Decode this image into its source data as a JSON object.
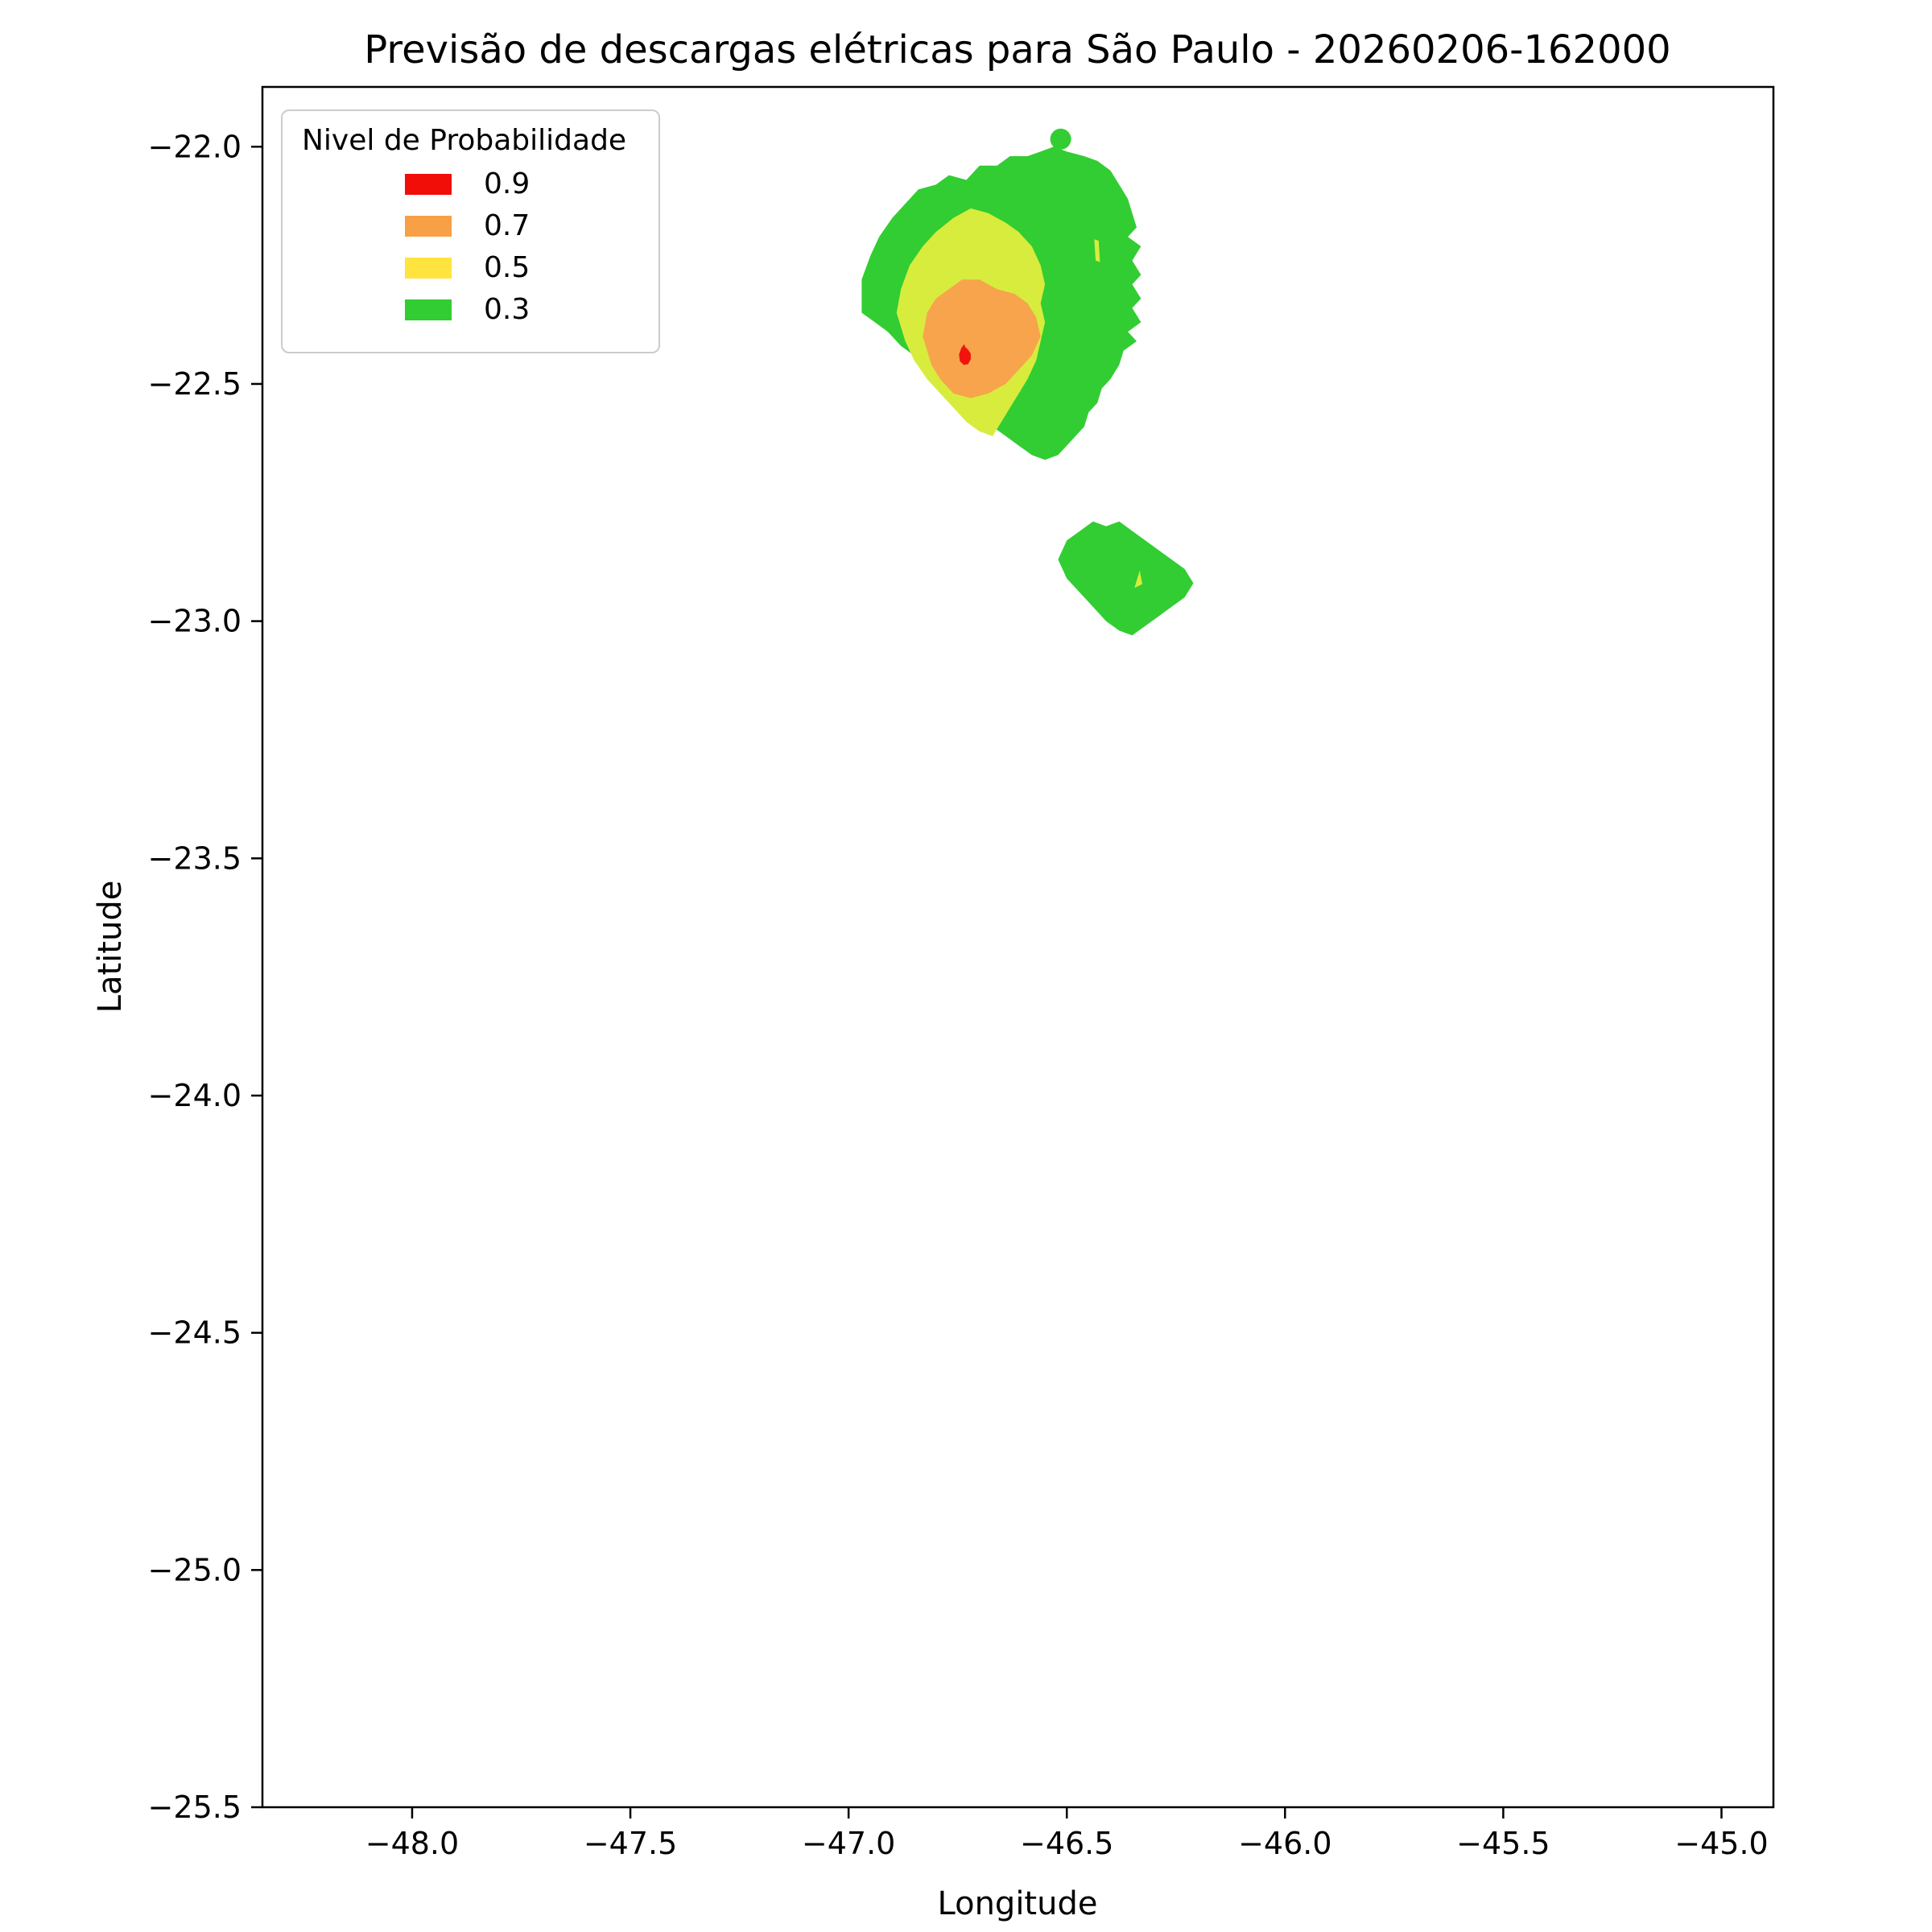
{
  "chart_data": {
    "type": "filled_contour_map",
    "title": "Previsão de descargas elétricas para São Paulo - 20260206-162000",
    "xlabel": "Longitude",
    "ylabel": "Latitude",
    "legend_title": "Nivel de Probabilidade",
    "x_range": [
      -48.343,
      -44.881
    ],
    "y_range": [
      -25.5,
      -21.874
    ],
    "grid": false,
    "legend_position": "upper left",
    "x_ticks": [
      {
        "value": -48.0,
        "label": "−48.0"
      },
      {
        "value": -47.5,
        "label": "−47.5"
      },
      {
        "value": -47.0,
        "label": "−47.0"
      },
      {
        "value": -46.5,
        "label": "−46.5"
      },
      {
        "value": -46.0,
        "label": "−46.0"
      },
      {
        "value": -45.5,
        "label": "−45.5"
      },
      {
        "value": -45.0,
        "label": "−45.0"
      }
    ],
    "y_ticks": [
      {
        "value": -22.0,
        "label": "−22.0"
      },
      {
        "value": -22.5,
        "label": "−22.5"
      },
      {
        "value": -23.0,
        "label": "−23.0"
      },
      {
        "value": -23.5,
        "label": "−23.5"
      },
      {
        "value": -24.0,
        "label": "−24.0"
      },
      {
        "value": -24.5,
        "label": "−24.5"
      },
      {
        "value": -25.0,
        "label": "−25.0"
      },
      {
        "value": -25.5,
        "label": "−25.5"
      }
    ],
    "levels": [
      {
        "label": "0.9",
        "color": "#f10e08"
      },
      {
        "label": "0.7",
        "color": "#f8a045"
      },
      {
        "label": "0.5",
        "color": "#ffe33e"
      },
      {
        "label": "0.3",
        "color": "#32cd32"
      }
    ],
    "regions": [
      {
        "name": "storm-cell-1-prob-30",
        "level": 0.3,
        "color": "#32cd32",
        "points": [
          [
            -46.97,
            -22.35
          ],
          [
            -46.97,
            -22.28
          ],
          [
            -46.95,
            -22.23
          ],
          [
            -46.93,
            -22.19
          ],
          [
            -46.9,
            -22.15
          ],
          [
            -46.87,
            -22.12
          ],
          [
            -46.84,
            -22.09
          ],
          [
            -46.8,
            -22.08
          ],
          [
            -46.77,
            -22.06
          ],
          [
            -46.73,
            -22.07
          ],
          [
            -46.7,
            -22.04
          ],
          [
            -46.66,
            -22.04
          ],
          [
            -46.63,
            -22.02
          ],
          [
            -46.59,
            -22.02
          ],
          [
            -46.56,
            -22.01
          ],
          [
            -46.53,
            -22.0
          ],
          [
            -46.5,
            -22.01
          ],
          [
            -46.46,
            -22.02
          ],
          [
            -46.43,
            -22.03
          ],
          [
            -46.4,
            -22.05
          ],
          [
            -46.38,
            -22.08
          ],
          [
            -46.36,
            -22.11
          ],
          [
            -46.35,
            -22.14
          ],
          [
            -46.34,
            -22.17
          ],
          [
            -46.36,
            -22.19
          ],
          [
            -46.33,
            -22.21
          ],
          [
            -46.35,
            -22.24
          ],
          [
            -46.33,
            -22.27
          ],
          [
            -46.35,
            -22.29
          ],
          [
            -46.33,
            -22.32
          ],
          [
            -46.35,
            -22.34
          ],
          [
            -46.33,
            -22.37
          ],
          [
            -46.36,
            -22.39
          ],
          [
            -46.34,
            -22.41
          ],
          [
            -46.37,
            -22.43
          ],
          [
            -46.38,
            -22.46
          ],
          [
            -46.4,
            -22.49
          ],
          [
            -46.42,
            -22.51
          ],
          [
            -46.43,
            -22.54
          ],
          [
            -46.45,
            -22.56
          ],
          [
            -46.46,
            -22.59
          ],
          [
            -46.48,
            -22.61
          ],
          [
            -46.5,
            -22.63
          ],
          [
            -46.52,
            -22.65
          ],
          [
            -46.55,
            -22.66
          ],
          [
            -46.58,
            -22.65
          ],
          [
            -46.61,
            -22.63
          ],
          [
            -46.64,
            -22.61
          ],
          [
            -46.67,
            -22.59
          ],
          [
            -46.7,
            -22.57
          ],
          [
            -46.73,
            -22.55
          ],
          [
            -46.76,
            -22.52
          ],
          [
            -46.79,
            -22.5
          ],
          [
            -46.82,
            -22.47
          ],
          [
            -46.85,
            -22.44
          ],
          [
            -46.88,
            -22.42
          ],
          [
            -46.91,
            -22.39
          ],
          [
            -46.94,
            -22.37
          ]
        ]
      },
      {
        "name": "storm-cell-1-prob-50",
        "level": 0.5,
        "color": "#d8ec3e",
        "points": [
          [
            -46.89,
            -22.35
          ],
          [
            -46.88,
            -22.3
          ],
          [
            -46.86,
            -22.25
          ],
          [
            -46.83,
            -22.21
          ],
          [
            -46.8,
            -22.18
          ],
          [
            -46.76,
            -22.15
          ],
          [
            -46.72,
            -22.13
          ],
          [
            -46.68,
            -22.14
          ],
          [
            -46.64,
            -22.16
          ],
          [
            -46.61,
            -22.18
          ],
          [
            -46.58,
            -22.21
          ],
          [
            -46.56,
            -22.25
          ],
          [
            -46.55,
            -22.29
          ],
          [
            -46.56,
            -22.33
          ],
          [
            -46.55,
            -22.37
          ],
          [
            -46.56,
            -22.41
          ],
          [
            -46.57,
            -22.45
          ],
          [
            -46.59,
            -22.49
          ],
          [
            -46.61,
            -22.52
          ],
          [
            -46.63,
            -22.55
          ],
          [
            -46.65,
            -22.58
          ],
          [
            -46.67,
            -22.61
          ],
          [
            -46.7,
            -22.6
          ],
          [
            -46.73,
            -22.58
          ],
          [
            -46.76,
            -22.55
          ],
          [
            -46.79,
            -22.52
          ],
          [
            -46.82,
            -22.49
          ],
          [
            -46.85,
            -22.45
          ],
          [
            -46.87,
            -22.41
          ],
          [
            -46.88,
            -22.38
          ]
        ]
      },
      {
        "name": "storm-cell-1-prob-50-sliver",
        "level": 0.5,
        "color": "#d8ec3e",
        "points": [
          [
            -46.437,
            -22.195
          ],
          [
            -46.427,
            -22.198
          ],
          [
            -46.424,
            -22.243
          ],
          [
            -46.434,
            -22.24
          ]
        ]
      },
      {
        "name": "storm-cell-1-prob-70",
        "level": 0.7,
        "color": "#f7a44c",
        "points": [
          [
            -46.83,
            -22.4
          ],
          [
            -46.82,
            -22.35
          ],
          [
            -46.8,
            -22.32
          ],
          [
            -46.77,
            -22.3
          ],
          [
            -46.74,
            -22.28
          ],
          [
            -46.7,
            -22.28
          ],
          [
            -46.66,
            -22.3
          ],
          [
            -46.62,
            -22.31
          ],
          [
            -46.59,
            -22.33
          ],
          [
            -46.57,
            -22.36
          ],
          [
            -46.56,
            -22.4
          ],
          [
            -46.58,
            -22.44
          ],
          [
            -46.61,
            -22.47
          ],
          [
            -46.64,
            -22.5
          ],
          [
            -46.68,
            -22.52
          ],
          [
            -46.72,
            -22.53
          ],
          [
            -46.76,
            -22.52
          ],
          [
            -46.79,
            -22.49
          ],
          [
            -46.81,
            -22.46
          ],
          [
            -46.82,
            -22.43
          ]
        ]
      },
      {
        "name": "storm-cell-1-prob-90",
        "level": 0.9,
        "color": "#f2130c",
        "points": [
          [
            -46.745,
            -22.452
          ],
          [
            -46.747,
            -22.438
          ],
          [
            -46.742,
            -22.425
          ],
          [
            -46.735,
            -22.416
          ],
          [
            -46.733,
            -22.422
          ],
          [
            -46.726,
            -22.428
          ],
          [
            -46.72,
            -22.436
          ],
          [
            -46.72,
            -22.448
          ],
          [
            -46.726,
            -22.458
          ],
          [
            -46.736,
            -22.46
          ]
        ]
      },
      {
        "name": "storm-cell-2-prob-30",
        "level": 0.3,
        "color": "#32cd32",
        "points": [
          [
            -46.52,
            -22.87
          ],
          [
            -46.5,
            -22.83
          ],
          [
            -46.47,
            -22.81
          ],
          [
            -46.44,
            -22.79
          ],
          [
            -46.41,
            -22.8
          ],
          [
            -46.38,
            -22.79
          ],
          [
            -46.35,
            -22.81
          ],
          [
            -46.32,
            -22.83
          ],
          [
            -46.29,
            -22.85
          ],
          [
            -46.26,
            -22.87
          ],
          [
            -46.23,
            -22.89
          ],
          [
            -46.21,
            -22.92
          ],
          [
            -46.23,
            -22.95
          ],
          [
            -46.26,
            -22.97
          ],
          [
            -46.29,
            -22.99
          ],
          [
            -46.32,
            -23.01
          ],
          [
            -46.35,
            -23.03
          ],
          [
            -46.38,
            -23.02
          ],
          [
            -46.41,
            -23.0
          ],
          [
            -46.44,
            -22.97
          ],
          [
            -46.47,
            -22.94
          ],
          [
            -46.5,
            -22.91
          ]
        ]
      },
      {
        "name": "storm-cell-2-prob-50-speck",
        "level": 0.5,
        "color": "#d8ec3e",
        "points": [
          [
            -46.345,
            -22.93
          ],
          [
            -46.333,
            -22.893
          ],
          [
            -46.327,
            -22.922
          ]
        ]
      }
    ],
    "markers": [
      {
        "name": "storm-cell-3-prob-30-dot",
        "level": 0.3,
        "color": "#32cd32",
        "lon": -46.514,
        "lat": -21.984,
        "radius_px": 13
      }
    ]
  }
}
